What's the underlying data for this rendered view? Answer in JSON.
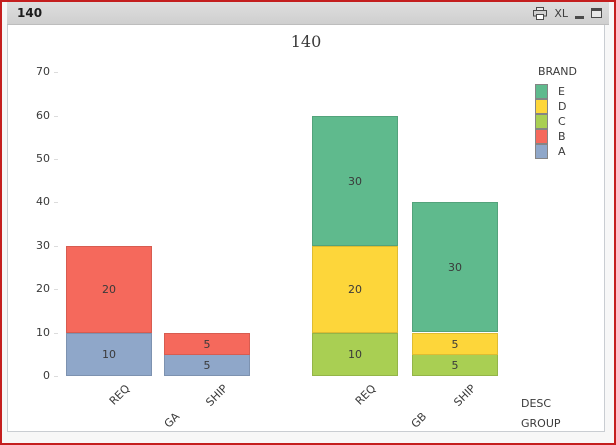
{
  "window": {
    "title": "140",
    "icons": {
      "excel_label": "XL"
    },
    "border_color": "#c41e1e"
  },
  "chart_data": {
    "type": "bar",
    "stacked": true,
    "title": "140",
    "legend_title": "BRAND",
    "legend_position": "right",
    "axis_labels": [
      "DESC",
      "GROUP"
    ],
    "ylim": [
      0,
      70
    ],
    "yticks": [
      0,
      10,
      20,
      30,
      40,
      50,
      60,
      70
    ],
    "grid": false,
    "series_colors": {
      "A": "#8fa7c9",
      "B": "#f5695c",
      "C": "#a9cf53",
      "D": "#fdd63a",
      "E": "#5fba8d"
    },
    "legend_order": [
      "E",
      "D",
      "C",
      "B",
      "A"
    ],
    "groups": [
      {
        "label": "GA",
        "bars": [
          {
            "label": "REQ",
            "segments": [
              {
                "series": "A",
                "value": 10
              },
              {
                "series": "B",
                "value": 20
              }
            ]
          },
          {
            "label": "SHIP",
            "segments": [
              {
                "series": "A",
                "value": 5
              },
              {
                "series": "B",
                "value": 5
              }
            ]
          }
        ]
      },
      {
        "label": "GB",
        "bars": [
          {
            "label": "REQ",
            "segments": [
              {
                "series": "C",
                "value": 10
              },
              {
                "series": "D",
                "value": 20
              },
              {
                "series": "E",
                "value": 30
              }
            ]
          },
          {
            "label": "SHIP",
            "segments": [
              {
                "series": "C",
                "value": 5
              },
              {
                "series": "D",
                "value": 5
              },
              {
                "series": "E",
                "value": 30
              }
            ]
          }
        ]
      }
    ]
  }
}
